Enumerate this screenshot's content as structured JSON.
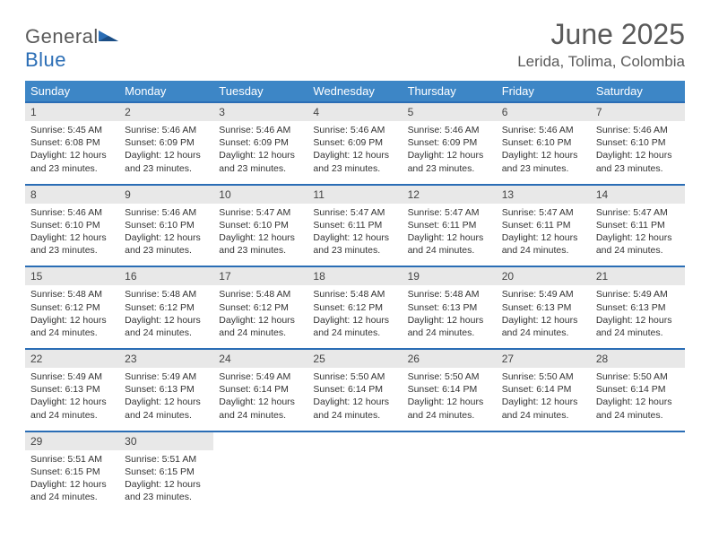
{
  "logo": {
    "first": "General",
    "second": "Blue"
  },
  "title": "June 2025",
  "location": "Lerida, Tolima, Colombia",
  "colors": {
    "header_bg": "#3d86c6",
    "header_text": "#ffffff",
    "row_border": "#2a6db5",
    "daynum_bg": "#e8e8e8",
    "text": "#333333",
    "title": "#5a5a5a"
  },
  "weekdays": [
    "Sunday",
    "Monday",
    "Tuesday",
    "Wednesday",
    "Thursday",
    "Friday",
    "Saturday"
  ],
  "days": [
    {
      "n": 1,
      "rise": "5:45 AM",
      "set": "6:08 PM",
      "dl": "12 hours and 23 minutes."
    },
    {
      "n": 2,
      "rise": "5:46 AM",
      "set": "6:09 PM",
      "dl": "12 hours and 23 minutes."
    },
    {
      "n": 3,
      "rise": "5:46 AM",
      "set": "6:09 PM",
      "dl": "12 hours and 23 minutes."
    },
    {
      "n": 4,
      "rise": "5:46 AM",
      "set": "6:09 PM",
      "dl": "12 hours and 23 minutes."
    },
    {
      "n": 5,
      "rise": "5:46 AM",
      "set": "6:09 PM",
      "dl": "12 hours and 23 minutes."
    },
    {
      "n": 6,
      "rise": "5:46 AM",
      "set": "6:10 PM",
      "dl": "12 hours and 23 minutes."
    },
    {
      "n": 7,
      "rise": "5:46 AM",
      "set": "6:10 PM",
      "dl": "12 hours and 23 minutes."
    },
    {
      "n": 8,
      "rise": "5:46 AM",
      "set": "6:10 PM",
      "dl": "12 hours and 23 minutes."
    },
    {
      "n": 9,
      "rise": "5:46 AM",
      "set": "6:10 PM",
      "dl": "12 hours and 23 minutes."
    },
    {
      "n": 10,
      "rise": "5:47 AM",
      "set": "6:10 PM",
      "dl": "12 hours and 23 minutes."
    },
    {
      "n": 11,
      "rise": "5:47 AM",
      "set": "6:11 PM",
      "dl": "12 hours and 23 minutes."
    },
    {
      "n": 12,
      "rise": "5:47 AM",
      "set": "6:11 PM",
      "dl": "12 hours and 24 minutes."
    },
    {
      "n": 13,
      "rise": "5:47 AM",
      "set": "6:11 PM",
      "dl": "12 hours and 24 minutes."
    },
    {
      "n": 14,
      "rise": "5:47 AM",
      "set": "6:11 PM",
      "dl": "12 hours and 24 minutes."
    },
    {
      "n": 15,
      "rise": "5:48 AM",
      "set": "6:12 PM",
      "dl": "12 hours and 24 minutes."
    },
    {
      "n": 16,
      "rise": "5:48 AM",
      "set": "6:12 PM",
      "dl": "12 hours and 24 minutes."
    },
    {
      "n": 17,
      "rise": "5:48 AM",
      "set": "6:12 PM",
      "dl": "12 hours and 24 minutes."
    },
    {
      "n": 18,
      "rise": "5:48 AM",
      "set": "6:12 PM",
      "dl": "12 hours and 24 minutes."
    },
    {
      "n": 19,
      "rise": "5:48 AM",
      "set": "6:13 PM",
      "dl": "12 hours and 24 minutes."
    },
    {
      "n": 20,
      "rise": "5:49 AM",
      "set": "6:13 PM",
      "dl": "12 hours and 24 minutes."
    },
    {
      "n": 21,
      "rise": "5:49 AM",
      "set": "6:13 PM",
      "dl": "12 hours and 24 minutes."
    },
    {
      "n": 22,
      "rise": "5:49 AM",
      "set": "6:13 PM",
      "dl": "12 hours and 24 minutes."
    },
    {
      "n": 23,
      "rise": "5:49 AM",
      "set": "6:13 PM",
      "dl": "12 hours and 24 minutes."
    },
    {
      "n": 24,
      "rise": "5:49 AM",
      "set": "6:14 PM",
      "dl": "12 hours and 24 minutes."
    },
    {
      "n": 25,
      "rise": "5:50 AM",
      "set": "6:14 PM",
      "dl": "12 hours and 24 minutes."
    },
    {
      "n": 26,
      "rise": "5:50 AM",
      "set": "6:14 PM",
      "dl": "12 hours and 24 minutes."
    },
    {
      "n": 27,
      "rise": "5:50 AM",
      "set": "6:14 PM",
      "dl": "12 hours and 24 minutes."
    },
    {
      "n": 28,
      "rise": "5:50 AM",
      "set": "6:14 PM",
      "dl": "12 hours and 24 minutes."
    },
    {
      "n": 29,
      "rise": "5:51 AM",
      "set": "6:15 PM",
      "dl": "12 hours and 24 minutes."
    },
    {
      "n": 30,
      "rise": "5:51 AM",
      "set": "6:15 PM",
      "dl": "12 hours and 23 minutes."
    }
  ],
  "labels": {
    "sunrise": "Sunrise:",
    "sunset": "Sunset:",
    "daylight": "Daylight:"
  }
}
